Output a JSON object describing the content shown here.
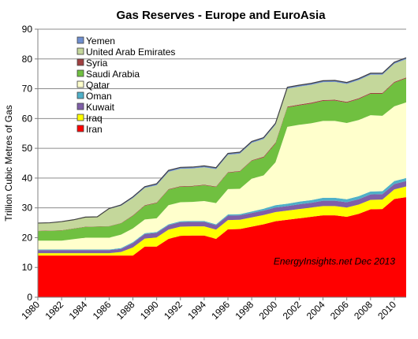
{
  "chart_data": {
    "type": "area",
    "stacked": true,
    "title": "Gas Reserves - Europe and EuroAsia",
    "xlabel": "",
    "ylabel": "Trillion Cubic Metres of Gas",
    "annotation": "EnergyInsights.net  Dec 2013",
    "x": [
      1980,
      1981,
      1982,
      1983,
      1984,
      1985,
      1986,
      1987,
      1988,
      1989,
      1990,
      1991,
      1992,
      1993,
      1994,
      1995,
      1996,
      1997,
      1998,
      1999,
      2000,
      2001,
      2002,
      2003,
      2004,
      2005,
      2006,
      2007,
      2008,
      2009,
      2010,
      2011
    ],
    "xticks": [
      "1980",
      "1982",
      "1984",
      "1986",
      "1988",
      "1990",
      "1992",
      "1994",
      "1996",
      "1998",
      "2000",
      "2002",
      "2004",
      "2006",
      "2008",
      "2010"
    ],
    "ylim": [
      0,
      90
    ],
    "yticks": [
      "0",
      "10",
      "20",
      "30",
      "40",
      "50",
      "60",
      "70",
      "80",
      "90"
    ],
    "grid": true,
    "legend_position": "top-left",
    "series": [
      {
        "name": "Iran",
        "color": "#ff0000",
        "values": [
          14,
          14,
          14,
          14,
          14,
          14,
          14,
          14,
          14,
          17,
          17,
          19.6,
          20.6,
          20.7,
          20.7,
          19.6,
          22.8,
          22.9,
          23.7,
          24.5,
          25.5,
          26,
          26.5,
          27,
          27.5,
          27.5,
          27,
          28,
          29.5,
          29.6,
          33,
          33.6
        ]
      },
      {
        "name": "Iraq",
        "color": "#ffff00",
        "values": [
          0.8,
          0.8,
          0.8,
          0.8,
          0.8,
          0.8,
          0.8,
          1.2,
          2.7,
          2.7,
          3.1,
          3.1,
          3.1,
          3.1,
          3.1,
          3.1,
          3.1,
          3.1,
          3.1,
          3.1,
          3.1,
          3.1,
          3.1,
          3.1,
          3.1,
          3.1,
          3.1,
          3.1,
          3.2,
          3.2,
          3.2,
          3.6
        ]
      },
      {
        "name": "Kuwait",
        "color": "#7f5fa8",
        "values": [
          1,
          1,
          1,
          1,
          1,
          1,
          1,
          1,
          1.5,
          1.5,
          1.5,
          1.5,
          1.5,
          1.5,
          1.5,
          1.5,
          1.5,
          1.5,
          1.5,
          1.5,
          1.5,
          1.5,
          1.6,
          1.6,
          1.8,
          1.8,
          1.8,
          1.8,
          1.8,
          1.8,
          1.8,
          1.8
        ]
      },
      {
        "name": "Oman",
        "color": "#4fb0c8",
        "values": [
          0.2,
          0.2,
          0.2,
          0.2,
          0.2,
          0.2,
          0.2,
          0.3,
          0.3,
          0.3,
          0.3,
          0.3,
          0.3,
          0.3,
          0.3,
          0.3,
          0.4,
          0.4,
          0.5,
          0.6,
          0.8,
          0.8,
          0.9,
          0.9,
          1,
          1,
          1,
          1,
          1,
          1,
          1,
          1
        ]
      },
      {
        "name": "Qatar",
        "color": "#ffffcc",
        "values": [
          3,
          3,
          3,
          3.5,
          4,
          4,
          4,
          4.5,
          4.6,
          4.6,
          4.6,
          6.4,
          6.4,
          6.4,
          6.7,
          7.1,
          8.5,
          8.5,
          11,
          11.2,
          14.4,
          25.8,
          25.8,
          25.8,
          25.8,
          25.8,
          25.6,
          25.6,
          25.6,
          25.3,
          25.1,
          25.4
        ]
      },
      {
        "name": "Saudi Arabia",
        "color": "#70c040",
        "values": [
          3.2,
          3.3,
          3.4,
          3.5,
          3.6,
          3.7,
          3.8,
          3.8,
          4.2,
          4.6,
          5.1,
          5.2,
          5.2,
          5.2,
          5.3,
          5.4,
          5.5,
          5.8,
          6,
          6,
          6.3,
          6.5,
          6.5,
          6.6,
          6.7,
          6.8,
          6.8,
          7,
          7.2,
          7.4,
          7.9,
          8.1
        ]
      },
      {
        "name": "Syria",
        "color": "#a04040",
        "values": [
          0.1,
          0.1,
          0.1,
          0.1,
          0.1,
          0.1,
          0.1,
          0.1,
          0.2,
          0.2,
          0.2,
          0.2,
          0.2,
          0.2,
          0.2,
          0.2,
          0.2,
          0.2,
          0.2,
          0.3,
          0.3,
          0.3,
          0.3,
          0.3,
          0.3,
          0.3,
          0.3,
          0.3,
          0.3,
          0.3,
          0.3,
          0.3
        ]
      },
      {
        "name": "United Arab Emirates",
        "color": "#c4d79b",
        "values": [
          2.6,
          2.6,
          2.9,
          2.9,
          3.2,
          3.2,
          5.7,
          5.8,
          5.8,
          5.8,
          5.8,
          5.8,
          5.8,
          5.8,
          5.8,
          5.8,
          5.8,
          5.8,
          5.8,
          5.9,
          6,
          6,
          6,
          6,
          6,
          6,
          6,
          6.1,
          6.1,
          6.1,
          6.1,
          6.1
        ]
      },
      {
        "name": "Yemen",
        "color": "#6f8fd0",
        "values": [
          0,
          0,
          0,
          0,
          0,
          0,
          0.2,
          0.3,
          0.4,
          0.4,
          0.5,
          0.5,
          0.5,
          0.5,
          0.5,
          0.5,
          0.5,
          0.5,
          0.5,
          0.5,
          0.5,
          0.5,
          0.5,
          0.5,
          0.5,
          0.5,
          0.5,
          0.5,
          0.5,
          0.5,
          0.5,
          0.5
        ]
      }
    ]
  }
}
